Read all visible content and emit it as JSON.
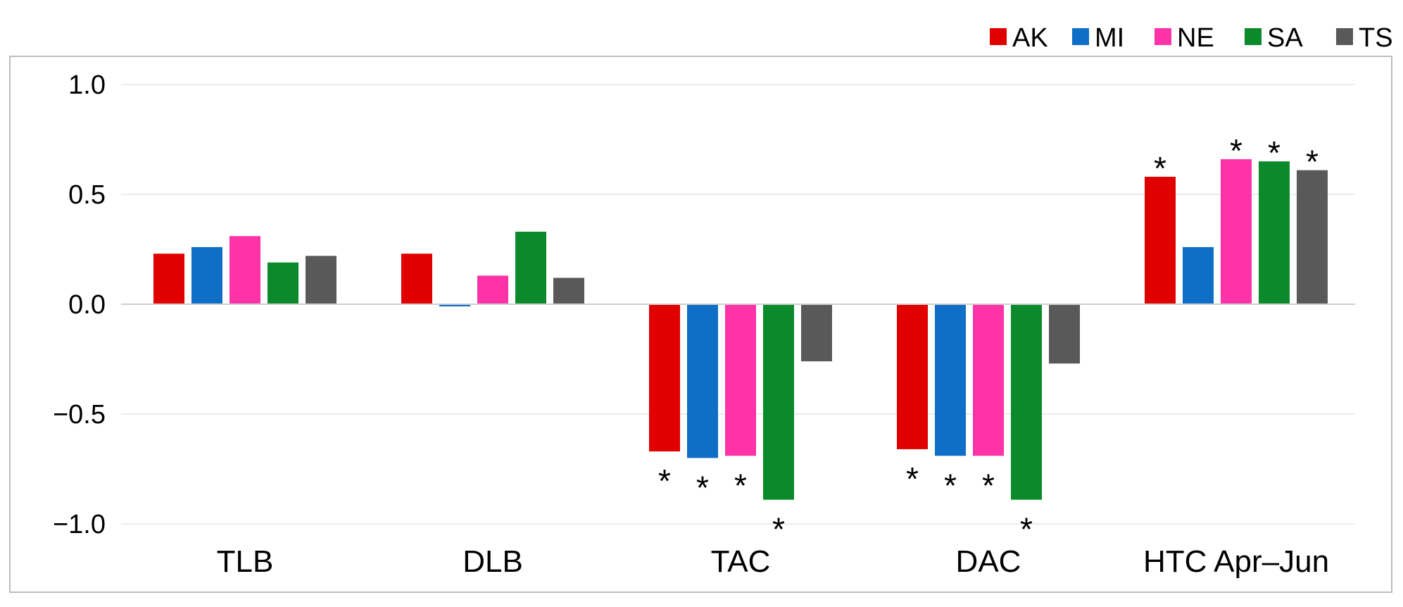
{
  "chart_data": {
    "type": "bar",
    "title": "",
    "xlabel": "",
    "ylabel": "",
    "ylim": [
      -1.0,
      1.0
    ],
    "yticks": [
      1.0,
      0.5,
      0.0,
      -0.5,
      -1.0
    ],
    "ytick_labels": [
      "1.0",
      "0.5",
      "0.0",
      "−0.5",
      "−1.0"
    ],
    "grid": true,
    "legend_position": "top-right",
    "categories": [
      "TLB",
      "DLB",
      "TAC",
      "DAC",
      "HTC Apr–Jun"
    ],
    "significance_marker": "*",
    "series": [
      {
        "name": "AK",
        "color": "#e00000",
        "values": [
          0.23,
          0.23,
          -0.67,
          -0.66,
          0.58
        ],
        "significant": [
          false,
          false,
          true,
          true,
          true
        ]
      },
      {
        "name": "MI",
        "color": "#0f6ec6",
        "values": [
          0.26,
          -0.01,
          -0.7,
          -0.69,
          0.26
        ],
        "significant": [
          false,
          false,
          true,
          true,
          false
        ]
      },
      {
        "name": "NE",
        "color": "#ff33a8",
        "values": [
          0.31,
          0.13,
          -0.69,
          -0.69,
          0.66
        ],
        "significant": [
          false,
          false,
          true,
          true,
          true
        ]
      },
      {
        "name": "SA",
        "color": "#0a8a2a",
        "values": [
          0.19,
          0.33,
          -0.89,
          -0.89,
          0.65
        ],
        "significant": [
          false,
          false,
          true,
          true,
          true
        ]
      },
      {
        "name": "TS",
        "color": "#595959",
        "values": [
          0.22,
          0.12,
          -0.26,
          -0.27,
          0.61
        ],
        "significant": [
          false,
          false,
          false,
          false,
          true
        ]
      }
    ]
  }
}
